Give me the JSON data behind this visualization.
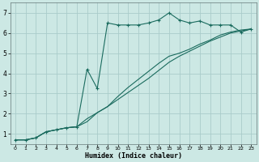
{
  "xlabel": "Humidex (Indice chaleur)",
  "bg_color": "#cce8e4",
  "grid_color": "#aaccca",
  "line_color": "#1a6b5e",
  "xlim": [
    -0.5,
    23.5
  ],
  "ylim": [
    0.5,
    7.5
  ],
  "yticks": [
    1,
    2,
    3,
    4,
    5,
    6,
    7
  ],
  "xticks": [
    0,
    1,
    2,
    3,
    4,
    5,
    6,
    7,
    8,
    9,
    10,
    11,
    12,
    13,
    14,
    15,
    16,
    17,
    18,
    19,
    20,
    21,
    22,
    23
  ],
  "line1_x": [
    0,
    1,
    2,
    3,
    4,
    5,
    6,
    7,
    8,
    9,
    10,
    11,
    12,
    13,
    14,
    15,
    16,
    17,
    18,
    19,
    20,
    21,
    22,
    23
  ],
  "line1_y": [
    0.7,
    0.7,
    0.8,
    1.1,
    1.2,
    1.3,
    1.35,
    4.2,
    3.25,
    6.5,
    6.4,
    6.4,
    6.4,
    6.5,
    6.65,
    7.0,
    6.65,
    6.5,
    6.6,
    6.4,
    6.4,
    6.4,
    6.05,
    6.2
  ],
  "line2_x": [
    0,
    1,
    2,
    3,
    4,
    5,
    6,
    7,
    8,
    9,
    10,
    11,
    12,
    13,
    14,
    15,
    16,
    17,
    18,
    19,
    20,
    21,
    22,
    23
  ],
  "line2_y": [
    0.7,
    0.7,
    0.8,
    1.1,
    1.2,
    1.3,
    1.35,
    1.75,
    2.05,
    2.35,
    2.7,
    3.05,
    3.4,
    3.75,
    4.15,
    4.55,
    4.85,
    5.1,
    5.35,
    5.6,
    5.8,
    6.0,
    6.1,
    6.2
  ],
  "line3_x": [
    0,
    1,
    2,
    3,
    4,
    5,
    6,
    7,
    8,
    9,
    10,
    11,
    12,
    13,
    14,
    15,
    16,
    17,
    18,
    19,
    20,
    21,
    22,
    23
  ],
  "line3_y": [
    0.7,
    0.7,
    0.8,
    1.1,
    1.2,
    1.3,
    1.35,
    1.6,
    2.05,
    2.35,
    2.85,
    3.3,
    3.7,
    4.1,
    4.5,
    4.85,
    5.0,
    5.2,
    5.45,
    5.65,
    5.9,
    6.05,
    6.15,
    6.2
  ]
}
